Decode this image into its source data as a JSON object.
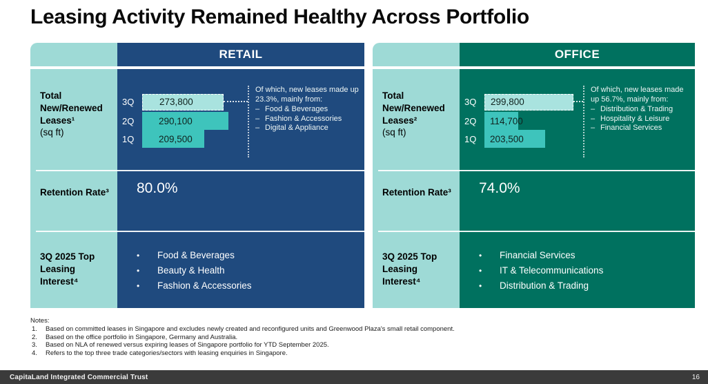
{
  "title": "Leasing Activity Remained Healthy Across Portfolio",
  "glyphs": {
    "dash": "–",
    "bullet": "•"
  },
  "colors": {
    "retail_body": "#1F4A7E",
    "office_body": "#00715F",
    "label_column": "#9EDAD6",
    "bar_light": "#A9E3DF",
    "bar_mid": "#3EC4BC",
    "footer_bg": "#3B3B3B"
  },
  "panels": [
    {
      "name": "RETAIL",
      "leases_label": "Total New/Renewed Leases¹",
      "leases_unit": "(sq ft)",
      "bars": [
        {
          "quarter": "3Q",
          "value": "273,800",
          "raw": 273800
        },
        {
          "quarter": "2Q",
          "value": "290,100",
          "raw": 290100
        },
        {
          "quarter": "1Q",
          "value": "209,500",
          "raw": 209500
        }
      ],
      "annotation": {
        "lead": "Of which, new leases made up 23.3%, mainly from:",
        "items": [
          "Food & Beverages",
          "Fashion & Accessories",
          "Digital & Appliance"
        ]
      },
      "retention_label": "Retention Rate³",
      "retention_value": "80.0%",
      "interest_label": "3Q 2025 Top Leasing Interest⁴",
      "interest_items": [
        "Food & Beverages",
        "Beauty & Health",
        "Fashion & Accessories"
      ]
    },
    {
      "name": "OFFICE",
      "leases_label": "Total New/Renewed Leases²",
      "leases_unit": "(sq ft)",
      "bars": [
        {
          "quarter": "3Q",
          "value": "299,800",
          "raw": 299800
        },
        {
          "quarter": "2Q",
          "value": "114,700",
          "raw": 114700
        },
        {
          "quarter": "1Q",
          "value": "203,500",
          "raw": 203500
        }
      ],
      "annotation": {
        "lead": "Of which, new leases made up 56.7%, mainly from:",
        "items": [
          "Distribution & Trading",
          "Hospitality & Leisure",
          "Financial Services"
        ]
      },
      "retention_label": "Retention Rate³",
      "retention_value": "74.0%",
      "interest_label": "3Q 2025 Top Leasing Interest⁴",
      "interest_items": [
        "Financial Services",
        "IT & Telecommunications",
        "Distribution & Trading"
      ]
    }
  ],
  "chart_data": [
    {
      "type": "bar",
      "title": "RETAIL — Total New/Renewed Leases (sq ft)",
      "categories": [
        "3Q",
        "2Q",
        "1Q"
      ],
      "values": [
        273800,
        290100,
        209500
      ],
      "xlabel": "",
      "ylabel": "sq ft",
      "annotation": "Of which, new leases made up 23.3%, mainly from: Food & Beverages, Fashion & Accessories, Digital & Appliance",
      "highlighted_category": "3Q"
    },
    {
      "type": "bar",
      "title": "OFFICE — Total New/Renewed Leases (sq ft)",
      "categories": [
        "3Q",
        "2Q",
        "1Q"
      ],
      "values": [
        299800,
        114700,
        203500
      ],
      "xlabel": "",
      "ylabel": "sq ft",
      "annotation": "Of which, new leases made up 56.7%, mainly from: Distribution & Trading, Hospitality & Leisure, Financial Services",
      "highlighted_category": "3Q"
    }
  ],
  "notes": {
    "heading": "Notes:",
    "items": [
      {
        "n": "1.",
        "text": "Based on committed leases in Singapore and excludes newly created and reconfigured units and Greenwood Plaza's small retail component."
      },
      {
        "n": "2.",
        "text": "Based on the office portfolio in Singapore, Germany and Australia."
      },
      {
        "n": "3.",
        "text": "Based on NLA of renewed versus expiring leases of Singapore portfolio for YTD September 2025."
      },
      {
        "n": "4.",
        "text": "Refers to the top three trade categories/sectors with leasing enquiries in Singapore."
      }
    ]
  },
  "footer": {
    "company": "CapitaLand Integrated Commercial Trust",
    "page": "16"
  }
}
